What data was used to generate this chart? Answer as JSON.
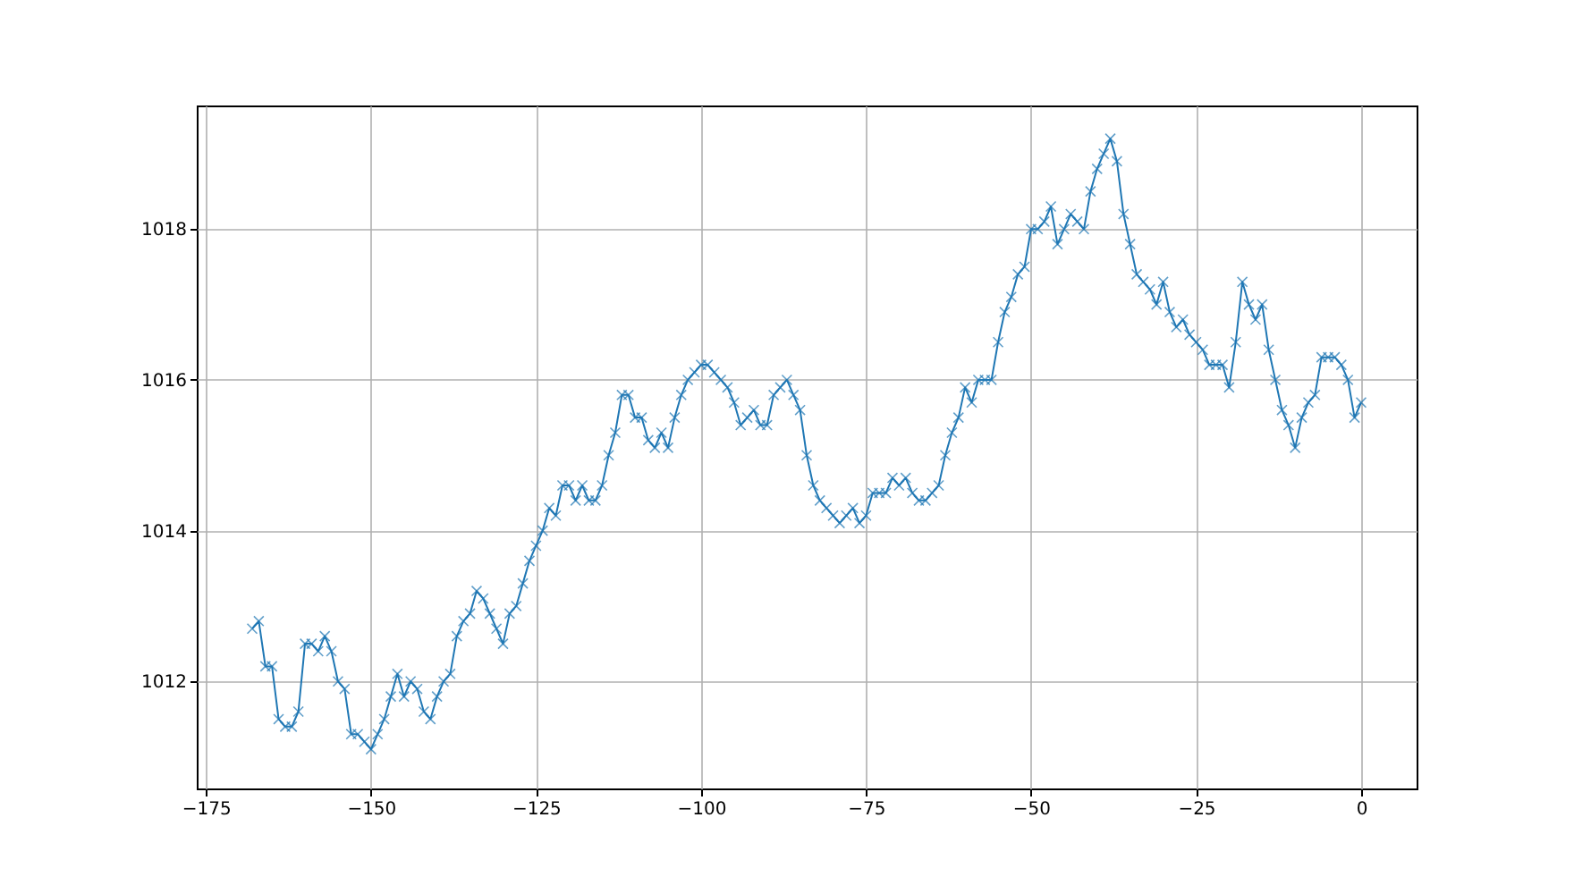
{
  "chart_data": {
    "type": "line",
    "marker": "cross",
    "line_style": "solid",
    "grid": true,
    "xlim": [
      -176.4,
      8.4
    ],
    "ylim": [
      1010.58,
      1019.64
    ],
    "xticks": [
      -175,
      -150,
      -125,
      -100,
      -75,
      -50,
      -25,
      0
    ],
    "yticks": [
      1012,
      1014,
      1016,
      1018
    ],
    "series": [
      {
        "color": "#1f77b4",
        "x": [
          -168,
          -167,
          -166,
          -165,
          -164,
          -163,
          -162,
          -161,
          -160,
          -159,
          -158,
          -157,
          -156,
          -155,
          -154,
          -153,
          -152,
          -151,
          -150,
          -149,
          -148,
          -147,
          -146,
          -145,
          -144,
          -143,
          -142,
          -141,
          -140,
          -139,
          -138,
          -137,
          -136,
          -135,
          -134,
          -133,
          -132,
          -131,
          -130,
          -129,
          -128,
          -127,
          -126,
          -125,
          -124,
          -123,
          -122,
          -121,
          -120,
          -119,
          -118,
          -117,
          -116,
          -115,
          -114,
          -113,
          -112,
          -111,
          -110,
          -109,
          -108,
          -107,
          -106,
          -105,
          -104,
          -103,
          -102,
          -101,
          -100,
          -99,
          -98,
          -97,
          -96,
          -95,
          -94,
          -93,
          -92,
          -91,
          -90,
          -89,
          -88,
          -87,
          -86,
          -85,
          -84,
          -83,
          -82,
          -81,
          -80,
          -79,
          -78,
          -77,
          -76,
          -75,
          -74,
          -73,
          -72,
          -71,
          -70,
          -69,
          -68,
          -67,
          -66,
          -65,
          -64,
          -63,
          -62,
          -61,
          -60,
          -59,
          -58,
          -57,
          -56,
          -55,
          -54,
          -53,
          -52,
          -51,
          -50,
          -49,
          -48,
          -47,
          -46,
          -45,
          -44,
          -43,
          -42,
          -41,
          -40,
          -39,
          -38,
          -37,
          -36,
          -35,
          -34,
          -33,
          -32,
          -31,
          -30,
          -29,
          -28,
          -27,
          -26,
          -25,
          -24,
          -23,
          -22,
          -21,
          -20,
          -19,
          -18,
          -17,
          -16,
          -15,
          -14,
          -13,
          -12,
          -11,
          -10,
          -9,
          -8,
          -7,
          -6,
          -5,
          -4,
          -3,
          -2,
          -1,
          0
        ],
        "values": [
          1012.7,
          1012.8,
          1012.2,
          1012.2,
          1011.5,
          1011.4,
          1011.4,
          1011.6,
          1012.5,
          1012.5,
          1012.4,
          1012.6,
          1012.4,
          1012.0,
          1011.9,
          1011.3,
          1011.3,
          1011.2,
          1011.1,
          1011.3,
          1011.5,
          1011.8,
          1012.1,
          1011.8,
          1012.0,
          1011.9,
          1011.6,
          1011.5,
          1011.8,
          1012.0,
          1012.1,
          1012.6,
          1012.8,
          1012.9,
          1013.2,
          1013.1,
          1012.9,
          1012.7,
          1012.5,
          1012.9,
          1013.0,
          1013.3,
          1013.6,
          1013.8,
          1014.0,
          1014.3,
          1014.2,
          1014.6,
          1014.6,
          1014.4,
          1014.6,
          1014.4,
          1014.4,
          1014.6,
          1015.0,
          1015.3,
          1015.8,
          1015.8,
          1015.5,
          1015.5,
          1015.2,
          1015.1,
          1015.3,
          1015.1,
          1015.5,
          1015.8,
          1016.0,
          1016.1,
          1016.2,
          1016.2,
          1016.1,
          1016.0,
          1015.9,
          1015.7,
          1015.4,
          1015.5,
          1015.6,
          1015.4,
          1015.4,
          1015.8,
          1015.9,
          1016.0,
          1015.8,
          1015.6,
          1015.0,
          1014.6,
          1014.4,
          1014.3,
          1014.2,
          1014.1,
          1014.2,
          1014.3,
          1014.1,
          1014.2,
          1014.5,
          1014.5,
          1014.5,
          1014.7,
          1014.6,
          1014.7,
          1014.5,
          1014.4,
          1014.4,
          1014.5,
          1014.6,
          1015.0,
          1015.3,
          1015.5,
          1015.9,
          1015.7,
          1016.0,
          1016.0,
          1016.0,
          1016.5,
          1016.9,
          1017.1,
          1017.4,
          1017.5,
          1018.0,
          1018.0,
          1018.1,
          1018.3,
          1017.8,
          1018.0,
          1018.2,
          1018.1,
          1018.0,
          1018.5,
          1018.8,
          1019.0,
          1019.2,
          1018.9,
          1018.2,
          1017.8,
          1017.4,
          1017.3,
          1017.2,
          1017.0,
          1017.3,
          1016.9,
          1016.7,
          1016.8,
          1016.6,
          1016.5,
          1016.4,
          1016.2,
          1016.2,
          1016.2,
          1015.9,
          1016.5,
          1017.3,
          1017.0,
          1016.8,
          1017.0,
          1016.4,
          1016.0,
          1015.6,
          1015.4,
          1015.1,
          1015.5,
          1015.7,
          1015.8,
          1016.3,
          1016.3,
          1016.3,
          1016.2,
          1016.0,
          1015.5,
          1015.7
        ]
      }
    ]
  }
}
